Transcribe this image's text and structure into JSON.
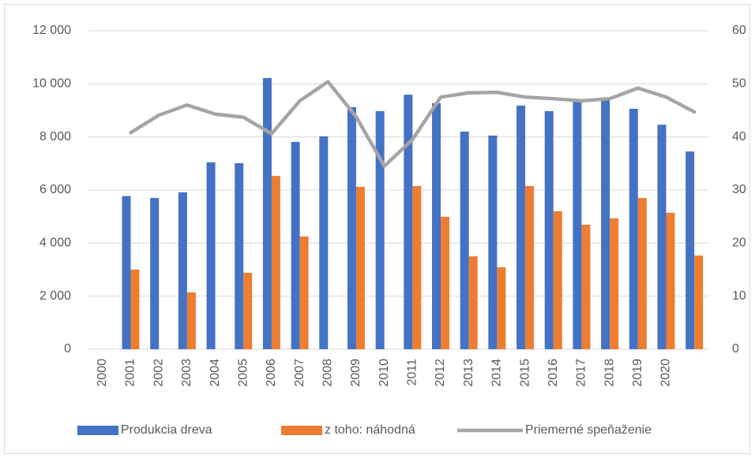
{
  "chart_data": {
    "type": "bar-line",
    "categories": [
      "2000",
      "2001",
      "2002",
      "2003",
      "2004",
      "2005",
      "2006",
      "2007",
      "2008",
      "2009",
      "2010",
      "2011",
      "2012",
      "2013",
      "2014",
      "2015",
      "2016",
      "2017",
      "2018",
      "2019",
      "2020",
      null
    ],
    "series": [
      {
        "name": "Produkcia dreva",
        "color": "#4472c4",
        "kind": "bar",
        "values": [
          null,
          5770,
          5700,
          5910,
          7040,
          7010,
          10220,
          7810,
          8020,
          9120,
          8970,
          9590,
          9270,
          8200,
          8050,
          9180,
          8970,
          9350,
          9470,
          9060,
          8460,
          7450
        ]
      },
      {
        "name": "z toho: náhodná",
        "color": "#ed7d31",
        "kind": "bar",
        "values": [
          null,
          3000,
          null,
          2140,
          null,
          2880,
          6530,
          4250,
          null,
          6120,
          null,
          6150,
          4990,
          3500,
          3090,
          6150,
          5200,
          4690,
          4930,
          5700,
          5140,
          3530
        ]
      },
      {
        "name": "Priemerné speňaženie",
        "color": "#a5a5a5",
        "kind": "line",
        "axis": "y2",
        "values": [
          null,
          40.8,
          44.1,
          46.0,
          44.3,
          43.7,
          40.6,
          46.8,
          50.4,
          43.8,
          34.5,
          39.5,
          47.5,
          48.3,
          48.4,
          47.5,
          47.2,
          46.8,
          47.2,
          49.2,
          47.5,
          44.7
        ]
      }
    ],
    "ylim": [
      0,
      12000
    ],
    "yticks": [
      {
        "value": 0,
        "label": "0"
      },
      {
        "value": 2000,
        "label": "2 000"
      },
      {
        "value": 4000,
        "label": "4 000"
      },
      {
        "value": 6000,
        "label": "6 000"
      },
      {
        "value": 8000,
        "label": "8 000"
      },
      {
        "value": 10000,
        "label": "10 000"
      },
      {
        "value": 12000,
        "label": "12 000"
      }
    ],
    "y2lim": [
      0,
      60
    ],
    "y2ticks": [
      0,
      10,
      20,
      30,
      40,
      50,
      60
    ],
    "grid": true,
    "legend": "bottom"
  }
}
